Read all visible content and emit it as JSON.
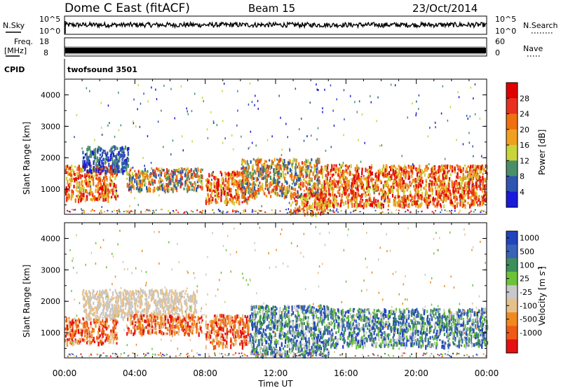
{
  "header": {
    "station": "Dome C East (fitACF)",
    "beam": "Beam 15",
    "date": "23/Oct/2014"
  },
  "top_panels": {
    "nsky_label": "N.Sky",
    "nsearch_label": "N.Search",
    "nsky_ticks": [
      "10^5",
      "10^0"
    ],
    "nsearch_ticks": [
      "10^5",
      "10^0"
    ],
    "freq_label_1": "Freq.",
    "freq_label_2": "[MHz]",
    "freq_ticks": [
      "18",
      "8"
    ],
    "nave_label": "Nave",
    "nave_ticks": [
      "60",
      "0"
    ],
    "cpid_label": "CPID",
    "cpid_text": "twofsound 3501"
  },
  "colors": {
    "power": [
      "#1a1adb",
      "#2e55b0",
      "#4a8f6a",
      "#c8d43a",
      "#f0a020",
      "#f07010",
      "#e83020",
      "#e00000"
    ],
    "velocity": [
      "#2244bb",
      "#3a62b8",
      "#3d8f5a",
      "#6cc33a",
      "#c8c8c8",
      "#e6c08a",
      "#f08a20",
      "#f05a15",
      "#e51010"
    ]
  },
  "chart_data": [
    {
      "type": "heatmap",
      "ylabel": "Slant Range [km]",
      "xlim": [
        "00:00",
        "24:00"
      ],
      "ylim": [
        200,
        4500
      ],
      "x_ticks": [
        "00:00",
        "04:00",
        "08:00",
        "12:00",
        "16:00",
        "20:00",
        "00:00"
      ],
      "y_ticks": [
        1000,
        2000,
        3000,
        4000
      ],
      "colorbar": {
        "label": "Power [dB]",
        "ticks": [
          4,
          8,
          12,
          16,
          20,
          24,
          28
        ],
        "range": [
          0,
          32
        ]
      },
      "echo_regions": [
        {
          "t0": 0.0,
          "t1": 3.0,
          "r0": 700,
          "r1": 1800,
          "level": "high"
        },
        {
          "t0": 1.0,
          "t1": 3.6,
          "r0": 1600,
          "r1": 2400,
          "level": "low"
        },
        {
          "t0": 3.5,
          "t1": 7.8,
          "r0": 1000,
          "r1": 1700,
          "level": "mid"
        },
        {
          "t0": 8.0,
          "t1": 10.5,
          "r0": 600,
          "r1": 1600,
          "level": "high"
        },
        {
          "t0": 10.0,
          "t1": 14.5,
          "r0": 800,
          "r1": 2000,
          "level": "mid"
        },
        {
          "t0": 12.8,
          "t1": 14.8,
          "r0": 250,
          "r1": 900,
          "level": "high"
        },
        {
          "t0": 14.5,
          "t1": 24.0,
          "r0": 500,
          "r1": 1800,
          "level": "high"
        }
      ]
    },
    {
      "type": "heatmap",
      "ylabel": "Slant Range [km]",
      "xlabel": "Time UT",
      "xlim": [
        "00:00",
        "24:00"
      ],
      "ylim": [
        200,
        4500
      ],
      "x_ticks": [
        "00:00",
        "04:00",
        "08:00",
        "12:00",
        "16:00",
        "20:00",
        "00:00"
      ],
      "y_ticks": [
        1000,
        2000,
        3000,
        4000
      ],
      "colorbar": {
        "label": "Velocity [m s^-1]",
        "ticks": [
          1000,
          500,
          100,
          25,
          -25,
          -100,
          -500,
          -1000
        ]
      },
      "echo_regions": [
        {
          "t0": 0.0,
          "t1": 3.0,
          "r0": 700,
          "r1": 1500,
          "level": "neg"
        },
        {
          "t0": 1.0,
          "t1": 7.5,
          "r0": 1500,
          "r1": 2400,
          "level": "zero"
        },
        {
          "t0": 3.5,
          "t1": 7.8,
          "r0": 1000,
          "r1": 1600,
          "level": "neg"
        },
        {
          "t0": 8.0,
          "t1": 10.5,
          "r0": 600,
          "r1": 1600,
          "level": "neg"
        },
        {
          "t0": 10.5,
          "t1": 15.0,
          "r0": 300,
          "r1": 1900,
          "level": "pos"
        },
        {
          "t0": 15.0,
          "t1": 24.0,
          "r0": 600,
          "r1": 1800,
          "level": "pos"
        }
      ]
    }
  ]
}
